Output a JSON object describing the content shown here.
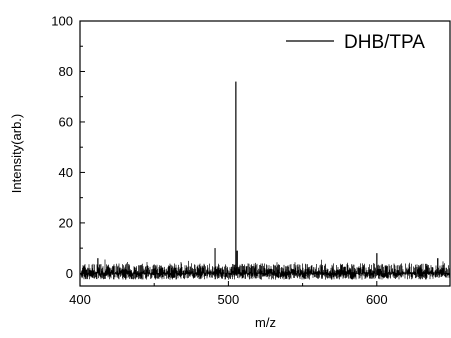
{
  "chart_data": {
    "type": "line",
    "title": "",
    "xlabel": "m/z",
    "ylabel": "Intensity(arb.)",
    "xlim": [
      400,
      650
    ],
    "ylim": [
      -5,
      100
    ],
    "xticks": [
      400,
      500,
      600
    ],
    "xtick_labels": [
      "400",
      "500",
      "600"
    ],
    "yticks": [
      0,
      20,
      40,
      60,
      80,
      100
    ],
    "ytick_labels": [
      "0",
      "20",
      "40",
      "60",
      "80",
      "100"
    ],
    "grid": false,
    "legend_position": "top-right",
    "line_color": "#000000",
    "series": [
      {
        "name": "DHB/TPA",
        "baseline_noise_max": 4,
        "peaks": [
          {
            "x": 412,
            "y": 6
          },
          {
            "x": 491,
            "y": 10
          },
          {
            "x": 505,
            "y": 76
          },
          {
            "x": 506,
            "y": 9
          },
          {
            "x": 600,
            "y": 8
          },
          {
            "x": 641,
            "y": 6
          }
        ]
      }
    ]
  }
}
